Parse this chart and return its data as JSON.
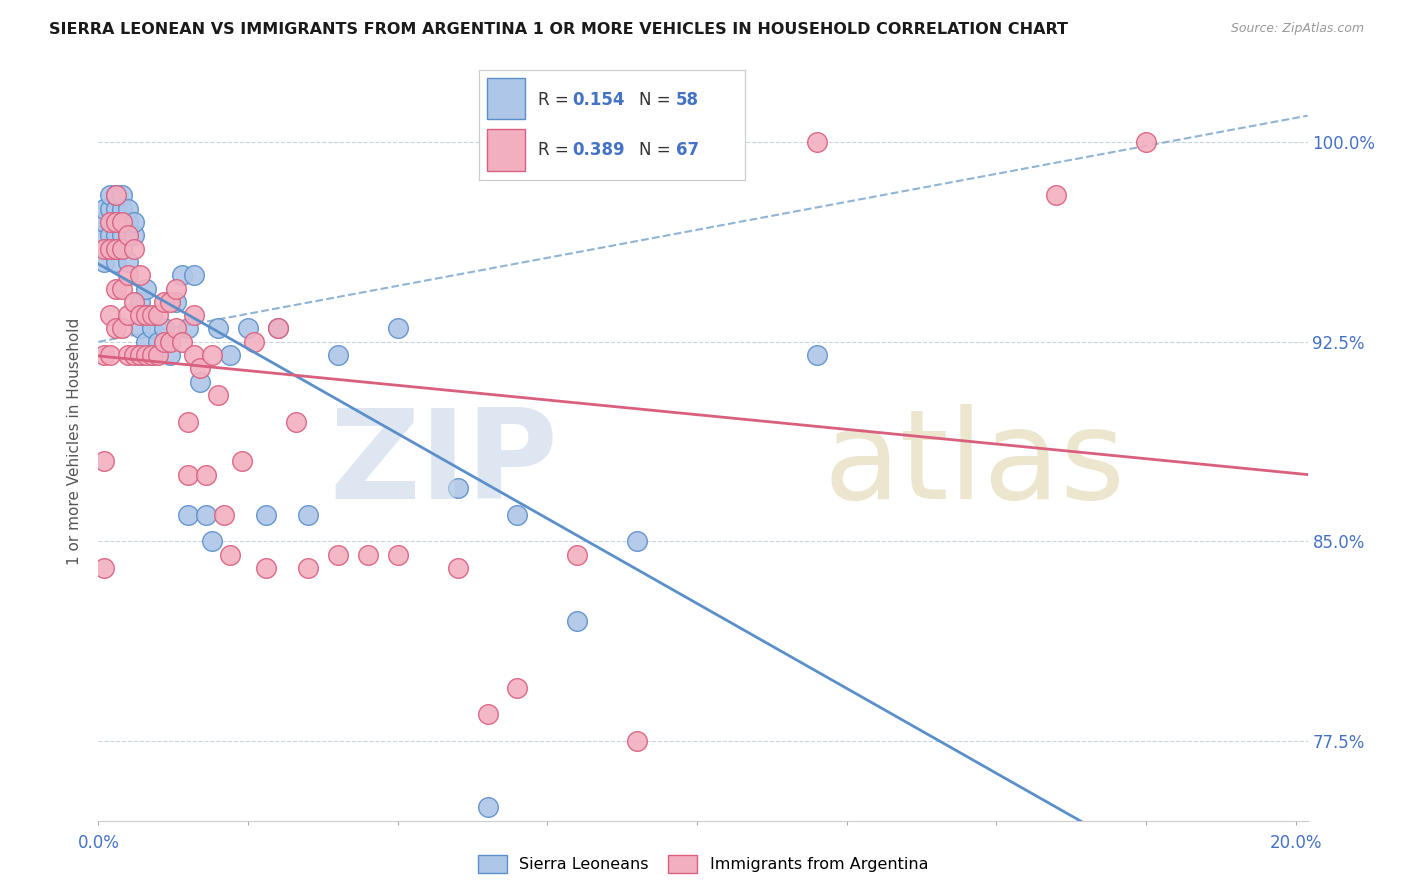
{
  "title": "SIERRA LEONEAN VS IMMIGRANTS FROM ARGENTINA 1 OR MORE VEHICLES IN HOUSEHOLD CORRELATION CHART",
  "source": "Source: ZipAtlas.com",
  "ylabel": "1 or more Vehicles in Household",
  "blue_R": 0.154,
  "blue_N": 58,
  "pink_R": 0.389,
  "pink_N": 67,
  "blue_color": "#aec6e8",
  "pink_color": "#f2afc0",
  "blue_edge_color": "#5b8fc9",
  "pink_edge_color": "#d95f7e",
  "blue_line_color": "#5b8fc9",
  "pink_line_color": "#d95f7e",
  "dash_line_color": "#8fb4d4",
  "watermark_zip_color": "#c8d8e8",
  "watermark_atlas_color": "#c8b870",
  "y_tick_positions": [
    0.775,
    0.85,
    0.925,
    1.0
  ],
  "y_tick_labels": [
    "77.5%",
    "85.0%",
    "92.5%",
    "100.0%"
  ],
  "x_lim": [
    0.0,
    0.202
  ],
  "y_lim": [
    0.745,
    1.03
  ],
  "blue_scatter_x": [
    0.001,
    0.001,
    0.001,
    0.001,
    0.002,
    0.002,
    0.002,
    0.002,
    0.003,
    0.003,
    0.003,
    0.003,
    0.003,
    0.003,
    0.004,
    0.004,
    0.004,
    0.004,
    0.004,
    0.005,
    0.005,
    0.005,
    0.005,
    0.006,
    0.006,
    0.007,
    0.007,
    0.007,
    0.008,
    0.008,
    0.008,
    0.009,
    0.009,
    0.01,
    0.011,
    0.012,
    0.013,
    0.014,
    0.015,
    0.015,
    0.016,
    0.017,
    0.018,
    0.019,
    0.02,
    0.022,
    0.025,
    0.028,
    0.03,
    0.035,
    0.04,
    0.05,
    0.06,
    0.065,
    0.07,
    0.08,
    0.09,
    0.12
  ],
  "blue_scatter_y": [
    0.955,
    0.965,
    0.97,
    0.975,
    0.96,
    0.965,
    0.975,
    0.98,
    0.955,
    0.96,
    0.965,
    0.97,
    0.975,
    0.98,
    0.96,
    0.965,
    0.97,
    0.975,
    0.98,
    0.955,
    0.965,
    0.97,
    0.975,
    0.965,
    0.97,
    0.92,
    0.93,
    0.94,
    0.925,
    0.935,
    0.945,
    0.92,
    0.93,
    0.925,
    0.93,
    0.92,
    0.94,
    0.95,
    0.86,
    0.93,
    0.95,
    0.91,
    0.86,
    0.85,
    0.93,
    0.92,
    0.93,
    0.86,
    0.93,
    0.86,
    0.92,
    0.93,
    0.87,
    0.75,
    0.86,
    0.82,
    0.85,
    0.92
  ],
  "pink_scatter_x": [
    0.001,
    0.001,
    0.001,
    0.001,
    0.002,
    0.002,
    0.002,
    0.002,
    0.003,
    0.003,
    0.003,
    0.003,
    0.003,
    0.004,
    0.004,
    0.004,
    0.004,
    0.005,
    0.005,
    0.005,
    0.005,
    0.006,
    0.006,
    0.006,
    0.007,
    0.007,
    0.007,
    0.008,
    0.008,
    0.009,
    0.009,
    0.01,
    0.01,
    0.011,
    0.011,
    0.012,
    0.012,
    0.013,
    0.013,
    0.014,
    0.015,
    0.015,
    0.016,
    0.016,
    0.017,
    0.018,
    0.019,
    0.02,
    0.021,
    0.022,
    0.024,
    0.026,
    0.028,
    0.03,
    0.033,
    0.035,
    0.04,
    0.045,
    0.05,
    0.06,
    0.065,
    0.07,
    0.08,
    0.09,
    0.12,
    0.16,
    0.175
  ],
  "pink_scatter_y": [
    0.84,
    0.88,
    0.92,
    0.96,
    0.92,
    0.935,
    0.96,
    0.97,
    0.93,
    0.945,
    0.96,
    0.97,
    0.98,
    0.93,
    0.945,
    0.96,
    0.97,
    0.92,
    0.935,
    0.95,
    0.965,
    0.92,
    0.94,
    0.96,
    0.92,
    0.935,
    0.95,
    0.92,
    0.935,
    0.92,
    0.935,
    0.92,
    0.935,
    0.925,
    0.94,
    0.925,
    0.94,
    0.93,
    0.945,
    0.925,
    0.875,
    0.895,
    0.92,
    0.935,
    0.915,
    0.875,
    0.92,
    0.905,
    0.86,
    0.845,
    0.88,
    0.925,
    0.84,
    0.93,
    0.895,
    0.84,
    0.845,
    0.845,
    0.845,
    0.84,
    0.785,
    0.795,
    0.845,
    0.775,
    1.0,
    0.98,
    1.0
  ]
}
